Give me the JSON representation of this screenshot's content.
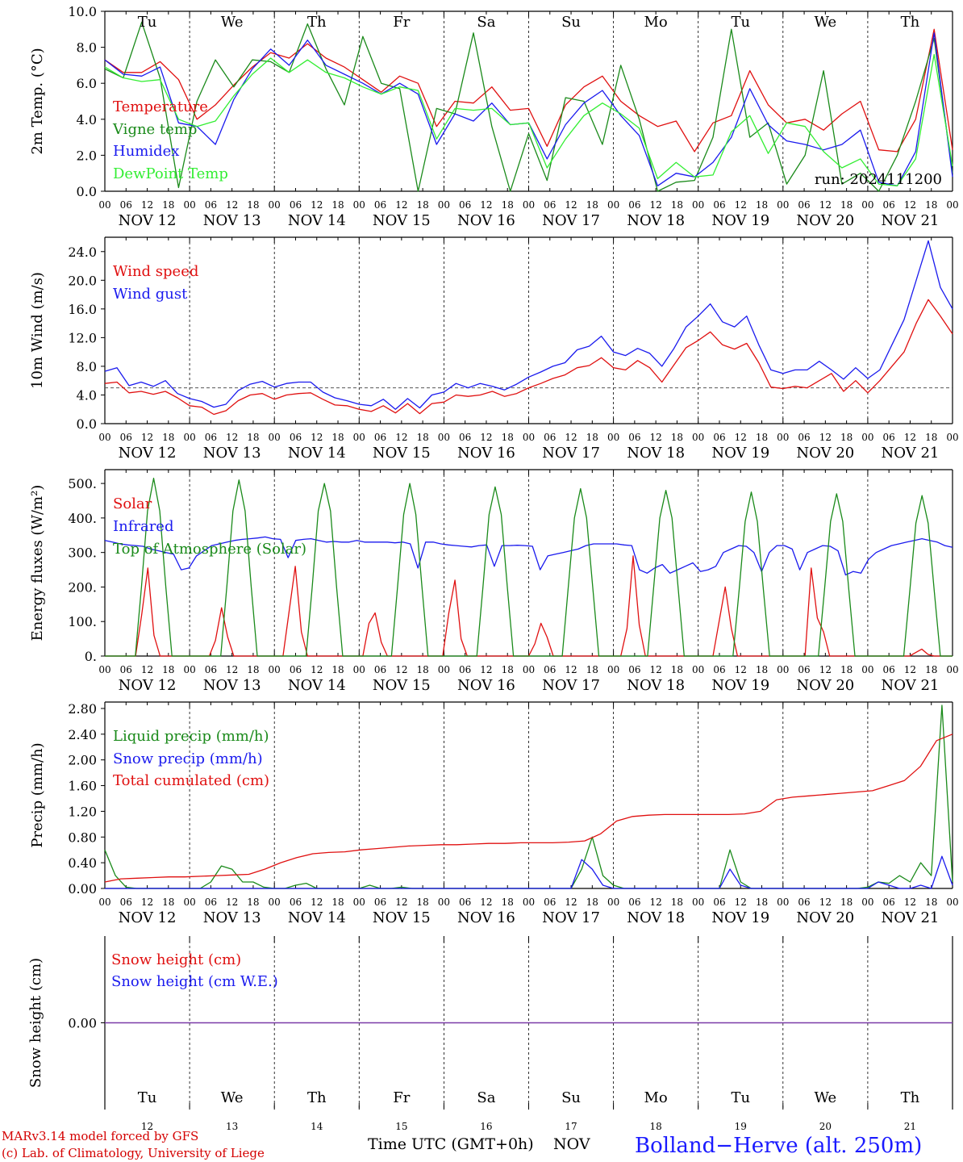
{
  "chart_data": [
    {
      "type": "line",
      "ylabel": "2m Temp. (°C)",
      "ylim": [
        0,
        10
      ],
      "yticks": [
        "0.0",
        "2.0",
        "4.0",
        "6.0",
        "8.0",
        "10.0"
      ],
      "run_label": "run: 2024111200",
      "series": [
        {
          "name": "Temperature",
          "color": "#e01010",
          "values": [
            7.3,
            6.6,
            6.6,
            7.2,
            6.2,
            4.0,
            4.8,
            5.9,
            6.9,
            7.7,
            7.4,
            8.2,
            7.4,
            6.9,
            6.2,
            5.5,
            6.4,
            6.0,
            3.6,
            5.0,
            4.9,
            5.8,
            4.5,
            4.6,
            2.5,
            4.8,
            5.8,
            6.4,
            5.0,
            4.2,
            3.6,
            3.9,
            2.2,
            3.8,
            4.2,
            6.7,
            4.8,
            3.8,
            4.0,
            3.4,
            4.3,
            5.0,
            2.3,
            2.2,
            4.0,
            9.0,
            2.3
          ]
        },
        {
          "name": "Vigne temp",
          "color": "#1a8a1a",
          "values": [
            6.8,
            6.3,
            9.4,
            6.3,
            0.2,
            5.0,
            7.3,
            5.8,
            7.3,
            7.2,
            6.6,
            9.3,
            6.8,
            4.8,
            8.6,
            6.0,
            5.7,
            0.0,
            4.6,
            4.3,
            8.8,
            3.6,
            0.0,
            3.2,
            0.6,
            5.2,
            5.0,
            2.6,
            7.0,
            4.0,
            0.0,
            0.5,
            0.6,
            3.0,
            9.0,
            3.0,
            3.8,
            0.4,
            2.0,
            6.7,
            0.4,
            1.0,
            0.0,
            2.0,
            5.0,
            8.5,
            1.0
          ]
        },
        {
          "name": "Humidex",
          "color": "#1a1aee",
          "values": [
            7.3,
            6.5,
            6.4,
            6.9,
            3.8,
            3.6,
            2.6,
            5.1,
            6.8,
            7.9,
            7.0,
            8.4,
            7.0,
            6.5,
            6.0,
            5.4,
            6.0,
            5.4,
            2.6,
            4.3,
            3.9,
            4.9,
            3.7,
            3.8,
            1.8,
            3.7,
            4.9,
            5.6,
            4.2,
            3.1,
            0.3,
            1.0,
            0.8,
            1.6,
            3.0,
            5.7,
            3.7,
            2.8,
            2.6,
            2.3,
            2.6,
            3.4,
            0.5,
            0.3,
            2.2,
            8.8,
            0.8
          ]
        },
        {
          "name": "DewPoint Temp",
          "color": "#33ee33",
          "values": [
            6.9,
            6.3,
            6.1,
            6.2,
            4.0,
            3.6,
            3.9,
            5.3,
            6.5,
            7.4,
            6.6,
            7.3,
            6.6,
            6.3,
            5.8,
            5.4,
            5.8,
            5.6,
            2.9,
            4.6,
            4.5,
            4.6,
            3.7,
            3.8,
            1.3,
            2.9,
            4.2,
            4.9,
            4.3,
            3.5,
            0.7,
            1.6,
            0.8,
            0.9,
            3.3,
            4.2,
            2.1,
            3.8,
            3.6,
            2.2,
            1.3,
            1.8,
            0.4,
            0.3,
            1.8,
            7.6,
            1.4
          ]
        }
      ]
    },
    {
      "type": "line",
      "ylabel": "10m Wind (m/s)",
      "ylim": [
        0,
        26
      ],
      "yticks": [
        "0.0",
        "4.0",
        "8.0",
        "12.0",
        "16.0",
        "20.0",
        "24.0"
      ],
      "reference_value": 5,
      "series": [
        {
          "name": "Wind speed",
          "color": "#e01010",
          "values": [
            5.6,
            5.8,
            4.3,
            4.5,
            4.1,
            4.5,
            3.6,
            2.5,
            2.3,
            1.3,
            1.8,
            3.2,
            4.0,
            4.2,
            3.4,
            4.0,
            4.2,
            4.3,
            3.4,
            2.6,
            2.5,
            2.0,
            1.7,
            2.5,
            1.5,
            2.8,
            1.4,
            2.8,
            3.0,
            4.0,
            3.8,
            4.0,
            4.5,
            3.8,
            4.2,
            5.0,
            5.6,
            6.3,
            6.8,
            7.8,
            8.1,
            9.2,
            7.8,
            7.5,
            8.8,
            7.8,
            5.8,
            8.2,
            10.6,
            11.6,
            12.8,
            11.0,
            10.4,
            11.2,
            8.5,
            5.1,
            4.9,
            5.2,
            5.0,
            6.0,
            7.0,
            4.5,
            6.0,
            4.3,
            6.0,
            8.0,
            10.0,
            14.0,
            17.3,
            15.0,
            12.5
          ]
        },
        {
          "name": "Wind gust",
          "color": "#1a1aee",
          "values": [
            7.3,
            7.8,
            5.3,
            5.8,
            5.2,
            6.0,
            4.2,
            3.5,
            3.1,
            2.3,
            2.7,
            4.6,
            5.5,
            5.9,
            5.1,
            5.6,
            5.8,
            5.8,
            4.4,
            3.6,
            3.2,
            2.7,
            2.5,
            3.4,
            2.0,
            3.5,
            2.2,
            4.0,
            4.4,
            5.6,
            5.0,
            5.6,
            5.2,
            4.7,
            5.5,
            6.5,
            7.2,
            8.0,
            8.5,
            10.3,
            10.8,
            12.2,
            10.0,
            9.5,
            10.5,
            9.8,
            8.0,
            10.5,
            13.5,
            15.0,
            16.7,
            14.2,
            13.5,
            15.0,
            11.0,
            7.5,
            7.0,
            7.5,
            7.5,
            8.7,
            7.5,
            6.2,
            7.8,
            6.3,
            7.5,
            11.0,
            14.5,
            20.0,
            25.5,
            19.0,
            16.0
          ]
        }
      ]
    },
    {
      "type": "line",
      "ylabel": "Energy fluxes (W/m²)",
      "ylim": [
        0,
        540
      ],
      "yticks": [
        "0.",
        "100.",
        "200.",
        "300.",
        "400.",
        "500."
      ],
      "series": [
        {
          "name": "Solar",
          "color": "#e01010",
          "values": [
            0,
            0,
            0,
            0,
            0,
            0,
            120,
            255,
            60,
            0,
            0,
            0,
            0,
            0,
            0,
            0,
            0,
            0,
            45,
            140,
            55,
            0,
            0,
            0,
            0,
            0,
            0,
            0,
            0,
            0,
            130,
            260,
            70,
            0,
            0,
            0,
            0,
            0,
            0,
            0,
            0,
            0,
            0,
            95,
            125,
            40,
            0,
            0,
            0,
            0,
            0,
            0,
            0,
            0,
            0,
            0,
            125,
            220,
            50,
            0,
            0,
            0,
            0,
            0,
            0,
            0,
            0,
            0,
            0,
            0,
            35,
            95,
            55,
            0,
            0,
            0,
            0,
            0,
            0,
            0,
            0,
            0,
            0,
            0,
            0,
            80,
            290,
            90,
            0,
            0,
            0,
            0,
            0,
            0,
            0,
            0,
            0,
            0,
            0,
            0,
            100,
            200,
            80,
            0,
            0,
            0,
            0,
            0,
            0,
            0,
            0,
            0,
            0,
            0,
            0,
            255,
            110,
            70,
            0,
            0,
            0,
            0,
            0,
            0,
            0,
            0,
            0,
            0,
            0,
            0,
            0,
            0,
            10,
            20,
            5,
            0,
            0,
            0,
            0
          ]
        },
        {
          "name": "Infrared",
          "color": "#1a1aee",
          "values": [
            335,
            330,
            325,
            322,
            320,
            318,
            310,
            305,
            300,
            295,
            250,
            255,
            290,
            305,
            320,
            325,
            330,
            335,
            338,
            340,
            342,
            345,
            340,
            338,
            285,
            335,
            338,
            340,
            335,
            330,
            332,
            330,
            330,
            335,
            330,
            330,
            330,
            330,
            328,
            330,
            325,
            255,
            330,
            330,
            325,
            322,
            320,
            318,
            316,
            320,
            322,
            260,
            320,
            320,
            321,
            320,
            318,
            250,
            290,
            295,
            300,
            305,
            310,
            320,
            325,
            325,
            325,
            325,
            322,
            320,
            250,
            240,
            255,
            265,
            240,
            250,
            260,
            270,
            245,
            250,
            260,
            300,
            310,
            320,
            318,
            300,
            245,
            300,
            320,
            320,
            310,
            250,
            300,
            310,
            320,
            318,
            305,
            235,
            245,
            240,
            280,
            300,
            310,
            320,
            325,
            330,
            335,
            340,
            335,
            330,
            320,
            315
          ]
        },
        {
          "name": "Top of Atmosphere (Solar)",
          "color": "#1a8a1a",
          "values": [
            0,
            0,
            0,
            0,
            0,
            0,
            200,
            420,
            515,
            420,
            200,
            0,
            0,
            0,
            0,
            0,
            0,
            0,
            0,
            0,
            200,
            420,
            510,
            420,
            200,
            0,
            0,
            0,
            0,
            0,
            0,
            0,
            0,
            0,
            200,
            420,
            500,
            420,
            200,
            0,
            0,
            0,
            0,
            0,
            0,
            0,
            0,
            0,
            200,
            410,
            500,
            410,
            200,
            0,
            0,
            0,
            0,
            0,
            0,
            0,
            0,
            0,
            200,
            410,
            490,
            410,
            200,
            0,
            0,
            0,
            0,
            0,
            0,
            0,
            0,
            0,
            200,
            400,
            485,
            400,
            200,
            0,
            0,
            0,
            0,
            0,
            0,
            0,
            0,
            0,
            200,
            400,
            480,
            400,
            200,
            0,
            0,
            0,
            0,
            0,
            0,
            0,
            0,
            0,
            190,
            390,
            475,
            390,
            190,
            0,
            0,
            0,
            0,
            0,
            0,
            0,
            0,
            0,
            190,
            390,
            470,
            390,
            190,
            0,
            0,
            0,
            0,
            0,
            0,
            0,
            0,
            0,
            190,
            385,
            465,
            385,
            190,
            0,
            0,
            0
          ]
        }
      ]
    },
    {
      "type": "line",
      "ylabel": "Precip (mm/h)",
      "ylim": [
        0,
        2.9
      ],
      "yticks": [
        "0.00",
        "0.40",
        "0.80",
        "1.20",
        "1.60",
        "2.00",
        "2.40",
        "2.80"
      ],
      "series": [
        {
          "name": "Liquid precip (mm/h)",
          "color": "#1a8a1a",
          "values": [
            0.6,
            0.2,
            0.02,
            0,
            0,
            0,
            0,
            0,
            0,
            0,
            0.1,
            0.35,
            0.3,
            0.1,
            0.1,
            0.02,
            0,
            0,
            0.05,
            0.08,
            0,
            0,
            0,
            0,
            0,
            0.05,
            0,
            0,
            0.02,
            0,
            0,
            0,
            0,
            0,
            0,
            0,
            0,
            0,
            0,
            0,
            0,
            0,
            0,
            0,
            0,
            0.3,
            0.8,
            0.2,
            0.05,
            0,
            0,
            0,
            0,
            0,
            0,
            0,
            0,
            0,
            0,
            0.6,
            0.1,
            0,
            0,
            0,
            0,
            0,
            0,
            0,
            0,
            0,
            0,
            0,
            0.02,
            0.1,
            0.08,
            0.2,
            0.1,
            0.4,
            0.2,
            2.85,
            0.1
          ]
        },
        {
          "name": "Snow precip (mm/h)",
          "color": "#1a1aee",
          "values": [
            0,
            0,
            0,
            0,
            0,
            0,
            0,
            0,
            0,
            0,
            0,
            0,
            0,
            0,
            0,
            0,
            0,
            0,
            0,
            0,
            0,
            0,
            0,
            0,
            0,
            0,
            0,
            0,
            0,
            0,
            0,
            0,
            0,
            0,
            0,
            0,
            0,
            0,
            0,
            0,
            0,
            0,
            0,
            0,
            0,
            0.45,
            0.3,
            0.05,
            0,
            0,
            0,
            0,
            0,
            0,
            0,
            0,
            0,
            0,
            0,
            0.3,
            0.05,
            0,
            0,
            0,
            0,
            0,
            0,
            0,
            0,
            0,
            0,
            0,
            0,
            0.1,
            0.05,
            0,
            0,
            0.05,
            0,
            0.5,
            0.05
          ]
        },
        {
          "name": "Total cumulated (cm)",
          "color": "#e01010",
          "values": [
            0.1,
            0.15,
            0.16,
            0.17,
            0.18,
            0.18,
            0.19,
            0.2,
            0.21,
            0.22,
            0.3,
            0.4,
            0.48,
            0.54,
            0.56,
            0.57,
            0.6,
            0.62,
            0.64,
            0.66,
            0.67,
            0.68,
            0.68,
            0.69,
            0.7,
            0.7,
            0.71,
            0.71,
            0.71,
            0.72,
            0.74,
            0.85,
            1.05,
            1.12,
            1.14,
            1.15,
            1.15,
            1.15,
            1.15,
            1.15,
            1.16,
            1.2,
            1.38,
            1.42,
            1.44,
            1.46,
            1.48,
            1.5,
            1.52,
            1.6,
            1.68,
            1.9,
            2.3,
            2.4
          ]
        }
      ]
    },
    {
      "type": "line",
      "ylabel": "Snow height (cm)",
      "yticks": [
        "0.00"
      ],
      "series": [
        {
          "name": "Snow height (cm)",
          "color": "#e01010",
          "values": [
            0,
            0,
            0,
            0,
            0,
            0,
            0,
            0,
            0,
            0,
            0,
            0,
            0,
            0,
            0,
            0,
            0,
            0,
            0,
            0,
            0
          ]
        },
        {
          "name": "Snow height (cm W.E.)",
          "color": "#1a1aee",
          "values": [
            0,
            0,
            0,
            0,
            0,
            0,
            0,
            0,
            0,
            0,
            0,
            0,
            0,
            0,
            0,
            0,
            0,
            0,
            0,
            0,
            0
          ]
        }
      ],
      "line_color": "#7a3aa8"
    }
  ],
  "hour_labels": [
    "00",
    "06",
    "12",
    "18"
  ],
  "dates": [
    "NOV 12",
    "NOV 13",
    "NOV 14",
    "NOV 15",
    "NOV 16",
    "NOV 17",
    "NOV 18",
    "NOV 19",
    "NOV 20",
    "NOV 21"
  ],
  "weekdays": [
    "Tu",
    "We",
    "Th",
    "Fr",
    "Sa",
    "Su",
    "Mo",
    "Tu",
    "We",
    "Th"
  ],
  "weekday_colors": [
    "#000000",
    "#000000",
    "#000000",
    "#000000",
    "#e01010",
    "#e01010",
    "#000000",
    "#000000",
    "#000000",
    "#000000"
  ],
  "day_numbers": [
    "12",
    "13",
    "14",
    "15",
    "16",
    "17",
    "18",
    "19",
    "20",
    "21"
  ],
  "footer": {
    "model": "MARv3.14 model forced by GFS",
    "credit": "(c) Lab. of Climatology, University of Liege",
    "time_axis": "Time UTC (GMT+0h)",
    "month": "NOV",
    "location": "Bolland−Herve (alt. 250m)"
  }
}
